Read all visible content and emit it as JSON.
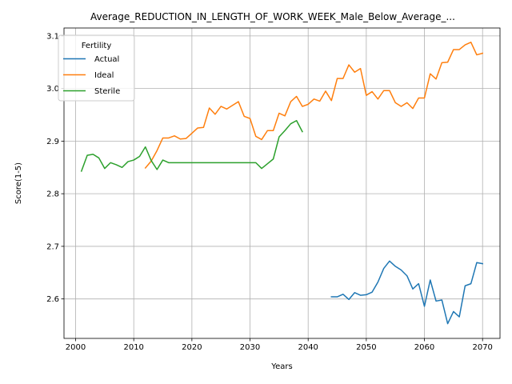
{
  "chart_data": {
    "type": "line",
    "title": "Average_REDUCTION_IN_LENGTH_OF_WORK_WEEK_Male_Below_Average_...",
    "xlabel": "Years",
    "ylabel": "Score(1-5)",
    "xlim": [
      1998,
      2073
    ],
    "ylim": [
      2.525,
      3.115
    ],
    "xticks": [
      2000,
      2010,
      2020,
      2030,
      2040,
      2050,
      2060,
      2070
    ],
    "yticks": [
      2.6,
      2.7,
      2.8,
      2.9,
      3.0,
      3.1
    ],
    "xtick_labels": [
      "2000",
      "2010",
      "2020",
      "2030",
      "2040",
      "2050",
      "2060",
      "2070"
    ],
    "ytick_labels": [
      "2.6",
      "2.7",
      "2.8",
      "2.9",
      "3.0",
      "3.1"
    ],
    "grid": true,
    "legend": {
      "title": "Fertility",
      "placement": "top-left"
    },
    "series": [
      {
        "name": "Actual",
        "color": "#1f77b4",
        "x": [
          2044,
          2045,
          2046,
          2047,
          2048,
          2049,
          2050,
          2051,
          2052,
          2053,
          2054,
          2055,
          2056,
          2057,
          2058,
          2059,
          2060,
          2061,
          2062,
          2063,
          2064,
          2065,
          2066,
          2067,
          2068,
          2069,
          2070
        ],
        "y": [
          2.604,
          2.604,
          2.609,
          2.599,
          2.612,
          2.607,
          2.608,
          2.613,
          2.632,
          2.658,
          2.672,
          2.662,
          2.655,
          2.644,
          2.619,
          2.629,
          2.586,
          2.636,
          2.596,
          2.598,
          2.553,
          2.576,
          2.566,
          2.625,
          2.629,
          2.669,
          2.667
        ]
      },
      {
        "name": "Ideal",
        "color": "#ff7f0e",
        "x": [
          2012,
          2013,
          2014,
          2015,
          2016,
          2017,
          2018,
          2019,
          2020,
          2021,
          2022,
          2023,
          2024,
          2025,
          2026,
          2027,
          2028,
          2029,
          2030,
          2031,
          2032,
          2033,
          2034,
          2035,
          2036,
          2037,
          2038,
          2039,
          2040,
          2041,
          2042,
          2043,
          2044,
          2045,
          2046,
          2047,
          2048,
          2049,
          2050,
          2051,
          2052,
          2053,
          2054,
          2055,
          2056,
          2057,
          2058,
          2059,
          2060,
          2061,
          2062,
          2063,
          2064,
          2065,
          2066,
          2067,
          2068,
          2069,
          2070
        ],
        "y": [
          2.849,
          2.862,
          2.882,
          2.906,
          2.906,
          2.91,
          2.904,
          2.905,
          2.915,
          2.925,
          2.926,
          2.963,
          2.951,
          2.966,
          2.961,
          2.968,
          2.975,
          2.947,
          2.943,
          2.909,
          2.903,
          2.92,
          2.92,
          2.953,
          2.948,
          2.975,
          2.985,
          2.966,
          2.97,
          2.98,
          2.976,
          2.995,
          2.977,
          3.019,
          3.019,
          3.045,
          3.031,
          3.038,
          2.987,
          2.994,
          2.98,
          2.996,
          2.996,
          2.973,
          2.966,
          2.973,
          2.962,
          2.982,
          2.982,
          3.028,
          3.018,
          3.049,
          3.05,
          3.074,
          3.074,
          3.083,
          3.088,
          3.064,
          3.067
        ]
      },
      {
        "name": "Sterile",
        "color": "#2ca02c",
        "x": [
          2001,
          2002,
          2003,
          2004,
          2005,
          2006,
          2007,
          2008,
          2009,
          2010,
          2011,
          2012,
          2013,
          2014,
          2015,
          2016,
          2017,
          2018,
          2019,
          2020,
          2021,
          2022,
          2023,
          2024,
          2025,
          2026,
          2027,
          2028,
          2029,
          2030,
          2031,
          2032,
          2033,
          2034,
          2035,
          2036,
          2037,
          2038,
          2039
        ],
        "y": [
          2.843,
          2.873,
          2.875,
          2.868,
          2.848,
          2.859,
          2.855,
          2.85,
          2.861,
          2.864,
          2.871,
          2.889,
          2.863,
          2.846,
          2.864,
          2.859,
          2.859,
          2.859,
          2.859,
          2.859,
          2.859,
          2.859,
          2.859,
          2.859,
          2.859,
          2.859,
          2.859,
          2.859,
          2.859,
          2.859,
          2.859,
          2.848,
          2.857,
          2.866,
          2.908,
          2.92,
          2.933,
          2.939,
          2.918
        ]
      }
    ]
  }
}
